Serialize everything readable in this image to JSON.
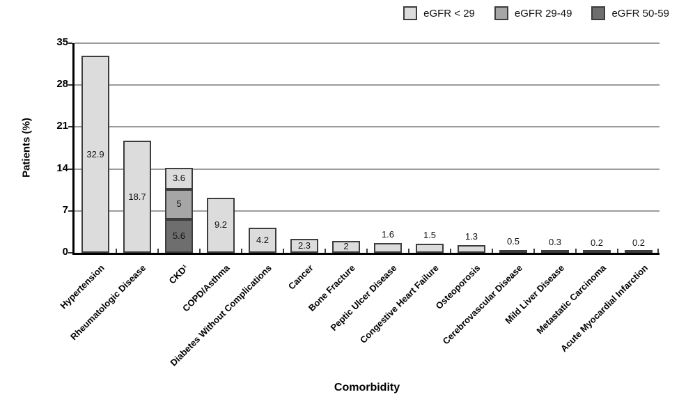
{
  "chart_data": {
    "type": "bar",
    "stacked": true,
    "title": "",
    "xlabel": "Comorbidity",
    "ylabel": "Patients (%)",
    "ylim": [
      0,
      35
    ],
    "yticks": [
      0,
      7,
      14,
      21,
      28,
      35
    ],
    "grid": true,
    "legend_position": "top-right",
    "categories": [
      "Hypertension",
      "Rheumatologic Disease",
      "CKD¹",
      "COPD/Asthma",
      "Diabetes Without Complications",
      "Cancer",
      "Bone Fracture",
      "Peptic Ulcer Disease",
      "Congestive Heart Failure",
      "Osteoporosis",
      "Cerebrovascular Disease",
      "Mild Liver Disease",
      "Metastatic Carcinoma",
      "Acute Myocardial Infarction"
    ],
    "series": [
      {
        "name": "eGFR < 29",
        "color": "#dcdcdc",
        "values": [
          32.9,
          18.7,
          3.6,
          9.2,
          4.2,
          2.3,
          2,
          1.6,
          1.5,
          1.3,
          0.5,
          0.3,
          0.2,
          0.2
        ]
      },
      {
        "name": "eGFR 29-49",
        "color": "#a6a6a6",
        "values": [
          0,
          0,
          5,
          0,
          0,
          0,
          0,
          0,
          0,
          0,
          0,
          0,
          0,
          0
        ]
      },
      {
        "name": "eGFR 50-59",
        "color": "#6e6e6e",
        "values": [
          0,
          0,
          5.6,
          0,
          0,
          0,
          0,
          0,
          0,
          0,
          0,
          0,
          0,
          0
        ]
      }
    ],
    "colors": {
      "grid": "#9c9c9c",
      "axis": "#000000",
      "bar_border": "#3d3d3d",
      "label_text": "#111111",
      "background": "#ffffff"
    }
  }
}
